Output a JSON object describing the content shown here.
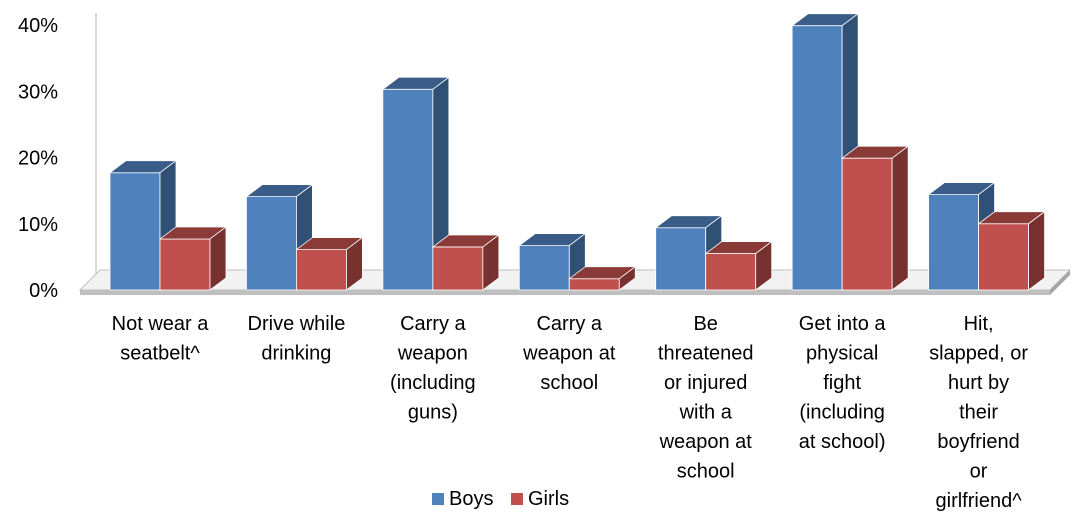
{
  "chart_data": {
    "type": "bar",
    "style": "3d-clustered-column",
    "categories": [
      "Not wear a seatbelt^",
      "Drive while drinking",
      "Carry a weapon (including guns)",
      "Carry a weapon at school",
      "Be threatened or injured with a weapon at school",
      "Get into a physical fight (including at school)",
      "Hit, slapped, or hurt by their boyfriend or girlfriend^"
    ],
    "category_lines": [
      [
        "Not wear a",
        "seatbelt^"
      ],
      [
        "Drive while",
        "drinking"
      ],
      [
        "Carry a",
        "weapon",
        "(including",
        "guns)"
      ],
      [
        "Carry a",
        "weapon at",
        "school"
      ],
      [
        "Be",
        "threatened",
        "or injured",
        "with a",
        "weapon at",
        "school"
      ],
      [
        "Get into a",
        "physical",
        "fight",
        "(including",
        "at school)"
      ],
      [
        "Hit,",
        "slapped, or",
        "hurt by",
        "their",
        "boyfriend",
        "or",
        "girlfriend^"
      ]
    ],
    "series": [
      {
        "name": "Boys",
        "color": "#4f81bd",
        "values": [
          17.7,
          14.1,
          30.3,
          6.7,
          9.4,
          39.9,
          14.4
        ]
      },
      {
        "name": "Girls",
        "color": "#c0504d",
        "values": [
          7.7,
          6.1,
          6.5,
          1.7,
          5.5,
          19.9,
          10.0
        ]
      }
    ],
    "y_ticks": [
      "0%",
      "10%",
      "20%",
      "30%",
      "40%"
    ],
    "ylim": [
      0,
      40
    ],
    "grid": false,
    "legend": "bottom"
  }
}
